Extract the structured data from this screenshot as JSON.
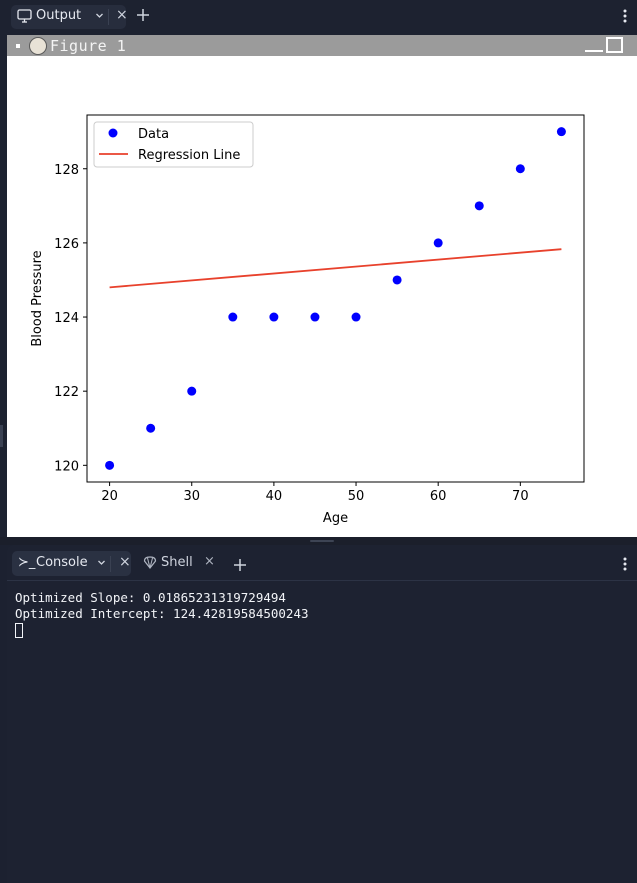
{
  "output_tab": {
    "label": "Output",
    "close": "×"
  },
  "figure": {
    "title": "Figure 1"
  },
  "console_tab": {
    "prompt_glyph": "≻_",
    "label": "Console",
    "close": "×"
  },
  "shell_tab": {
    "label": "Shell",
    "close": "×"
  },
  "console_lines": [
    "Optimized Slope: 0.01865231319729494",
    "Optimized Intercept: 124.42819584500243"
  ],
  "chart_data": {
    "type": "scatter",
    "xlabel": "Age",
    "ylabel": "Blood Pressure",
    "xlim": [
      17.25,
      77.75
    ],
    "ylim": [
      119.55,
      129.45
    ],
    "xticks": [
      20,
      30,
      40,
      50,
      60,
      70
    ],
    "yticks": [
      120,
      122,
      124,
      126,
      128
    ],
    "grid": false,
    "legend_position": "upper left",
    "series": [
      {
        "name": "Data",
        "kind": "scatter",
        "color": "#0000ff",
        "x": [
          20,
          25,
          30,
          35,
          40,
          45,
          50,
          55,
          60,
          65,
          70,
          75
        ],
        "y": [
          120,
          121,
          122,
          124,
          124,
          124,
          124,
          125,
          126,
          127,
          128,
          129
        ]
      },
      {
        "name": "Regression Line",
        "kind": "line",
        "color": "#e8412c",
        "x": [
          20,
          75
        ],
        "y": [
          124.8,
          125.83
        ]
      }
    ]
  }
}
